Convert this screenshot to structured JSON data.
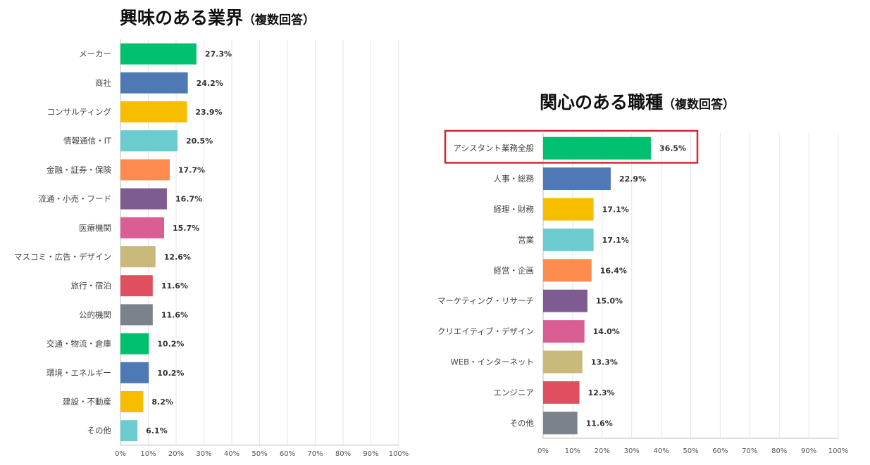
{
  "chart_data": [
    {
      "type": "bar",
      "orientation": "horizontal",
      "title": "興味のある業界",
      "subtitle": "（複数回答）",
      "categories": [
        "メーカー",
        "商社",
        "コンサルティング",
        "情報通信・IT",
        "金融・証券・保険",
        "流通・小売・フード",
        "医療機関",
        "マスコミ・広告・デザイン",
        "旅行・宿泊",
        "公的機関",
        "交通・物流・倉庫",
        "環境・エネルギー",
        "建設・不動産",
        "その他"
      ],
      "values": [
        27.3,
        24.2,
        23.9,
        20.5,
        17.7,
        16.7,
        15.7,
        12.6,
        11.6,
        11.6,
        10.2,
        10.2,
        8.2,
        6.1
      ],
      "value_labels": [
        "27.3%",
        "24.2%",
        "23.9%",
        "20.5%",
        "17.7%",
        "16.7%",
        "15.7%",
        "12.6%",
        "11.6%",
        "11.6%",
        "10.2%",
        "10.2%",
        "8.2%",
        "6.1%"
      ],
      "xlim": [
        0,
        100
      ],
      "x_ticks": [
        "0%",
        "10%",
        "20%",
        "30%",
        "40%",
        "50%",
        "60%",
        "70%",
        "80%",
        "90%",
        "100%"
      ],
      "grid": true,
      "highlight_index": null
    },
    {
      "type": "bar",
      "orientation": "horizontal",
      "title": "関心のある職種",
      "subtitle": "（複数回答）",
      "categories": [
        "アシスタント業務全般",
        "人事・総務",
        "経理・財務",
        "営業",
        "経営・企画",
        "マーケティング・リサーチ",
        "クリエイティブ・デザイン",
        "WEB・インターネット",
        "エンジニア",
        "その他"
      ],
      "values": [
        36.5,
        22.9,
        17.1,
        17.1,
        16.4,
        15.0,
        14.0,
        13.3,
        12.3,
        11.6
      ],
      "value_labels": [
        "36.5%",
        "22.9%",
        "17.1%",
        "17.1%",
        "16.4%",
        "15.0%",
        "14.0%",
        "13.3%",
        "12.3%",
        "11.6%"
      ],
      "xlim": [
        0,
        100
      ],
      "x_ticks": [
        "0%",
        "10%",
        "20%",
        "30%",
        "40%",
        "50%",
        "60%",
        "70%",
        "80%",
        "90%",
        "100%"
      ],
      "grid": true,
      "highlight_index": 0
    }
  ],
  "palette": [
    "#00c070",
    "#4e79b5",
    "#f7be00",
    "#6ccbce",
    "#ff8c4f",
    "#7e5c91",
    "#d95e93",
    "#c9b97a",
    "#e04f5f",
    "#7b8289"
  ],
  "highlight_color": "#d9262c"
}
